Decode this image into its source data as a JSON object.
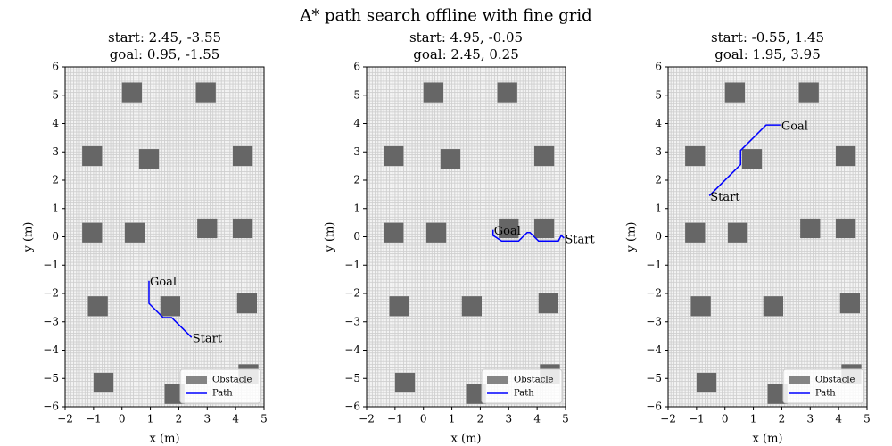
{
  "title": "A* path search offline with fine grid",
  "chart_data": [
    {
      "type": "line",
      "title": "start: 2.45, -3.55",
      "subtitle": "goal: 0.95, -1.55",
      "x_label": "x (m)",
      "y_label": "y (m)",
      "xlim": [
        -2,
        5
      ],
      "ylim": [
        -6,
        6
      ],
      "xticks": [
        {
          "value": -2,
          "label": "−2"
        },
        {
          "value": -1,
          "label": "−1"
        },
        0,
        1,
        2,
        3,
        4,
        5
      ],
      "yticks": [
        {
          "value": -6,
          "label": "−6"
        },
        {
          "value": -5,
          "label": "−5"
        },
        {
          "value": -4,
          "label": "−4"
        },
        {
          "value": -3,
          "label": "−3"
        },
        {
          "value": -2,
          "label": "−2"
        },
        {
          "value": -1,
          "label": "−1"
        },
        0,
        1,
        2,
        3,
        4,
        5,
        6
      ],
      "grid_resolution": 0.1,
      "legend": "lower right",
      "obstacles": {
        "name": "Obstacle",
        "color": "#666666",
        "size": 0.7,
        "x": [
          0.35,
          2.95,
          -1.05,
          0.95,
          4.25,
          -1.05,
          0.45,
          3.0,
          4.25,
          -0.85,
          1.7,
          4.4,
          -0.65,
          4.45,
          1.85
        ],
        "y": [
          5.1,
          5.1,
          2.85,
          2.75,
          2.85,
          0.15,
          0.15,
          0.3,
          0.3,
          -2.45,
          -2.45,
          -2.35,
          -5.15,
          -4.85,
          -5.55
        ]
      },
      "series": [
        {
          "name": "Path",
          "color": "#0000ff",
          "x": [
            2.45,
            1.75,
            1.45,
            0.95,
            0.95
          ],
          "values": [
            -3.55,
            -2.85,
            -2.85,
            -2.35,
            -1.55
          ]
        }
      ],
      "annotations": [
        {
          "text": "Start",
          "x": 2.45,
          "y": -3.55
        },
        {
          "text": "Goal",
          "x": 0.95,
          "y": -1.55
        }
      ]
    },
    {
      "type": "line",
      "title": "start: 4.95, -0.05",
      "subtitle": "goal: 2.45, 0.25",
      "x_label": "x (m)",
      "y_label": "y (m)",
      "xlim": [
        -2,
        5
      ],
      "ylim": [
        -6,
        6
      ],
      "xticks": [
        {
          "value": -2,
          "label": "−2"
        },
        {
          "value": -1,
          "label": "−1"
        },
        0,
        1,
        2,
        3,
        4,
        5
      ],
      "yticks": [
        {
          "value": -6,
          "label": "−6"
        },
        {
          "value": -5,
          "label": "−5"
        },
        {
          "value": -4,
          "label": "−4"
        },
        {
          "value": -3,
          "label": "−3"
        },
        {
          "value": -2,
          "label": "−2"
        },
        {
          "value": -1,
          "label": "−1"
        },
        0,
        1,
        2,
        3,
        4,
        5,
        6
      ],
      "grid_resolution": 0.1,
      "legend": "lower right",
      "obstacles": {
        "name": "Obstacle",
        "color": "#666666",
        "size": 0.7,
        "x": [
          0.35,
          2.95,
          -1.05,
          0.95,
          4.25,
          -1.05,
          0.45,
          3.0,
          4.25,
          -0.85,
          1.7,
          4.4,
          -0.65,
          4.45,
          1.85
        ],
        "y": [
          5.1,
          5.1,
          2.85,
          2.75,
          2.85,
          0.15,
          0.15,
          0.3,
          0.3,
          -2.45,
          -2.45,
          -2.35,
          -5.15,
          -4.85,
          -5.55
        ]
      },
      "series": [
        {
          "name": "Path",
          "color": "#0000ff",
          "x": [
            4.95,
            4.85,
            4.75,
            4.05,
            3.75,
            3.65,
            3.35,
            2.75,
            2.45,
            2.45
          ],
          "values": [
            -0.05,
            0.05,
            -0.15,
            -0.15,
            0.15,
            0.15,
            -0.15,
            -0.15,
            0.05,
            0.25
          ]
        }
      ],
      "annotations": [
        {
          "text": "Start",
          "x": 4.95,
          "y": -0.05
        },
        {
          "text": "Goal",
          "x": 2.45,
          "y": 0.25
        }
      ]
    },
    {
      "type": "line",
      "title": "start: -0.55, 1.45",
      "subtitle": "goal: 1.95, 3.95",
      "x_label": "x (m)",
      "y_label": "y (m)",
      "xlim": [
        -2,
        5
      ],
      "ylim": [
        -6,
        6
      ],
      "xticks": [
        {
          "value": -2,
          "label": "−2"
        },
        {
          "value": -1,
          "label": "−1"
        },
        0,
        1,
        2,
        3,
        4,
        5
      ],
      "yticks": [
        {
          "value": -6,
          "label": "−6"
        },
        {
          "value": -5,
          "label": "−5"
        },
        {
          "value": -4,
          "label": "−4"
        },
        {
          "value": -3,
          "label": "−3"
        },
        {
          "value": -2,
          "label": "−2"
        },
        {
          "value": -1,
          "label": "−1"
        },
        0,
        1,
        2,
        3,
        4,
        5,
        6
      ],
      "grid_resolution": 0.1,
      "legend": "lower right",
      "obstacles": {
        "name": "Obstacle",
        "color": "#666666",
        "size": 0.7,
        "x": [
          0.35,
          2.95,
          -1.05,
          0.95,
          4.25,
          -1.05,
          0.45,
          3.0,
          4.25,
          -0.85,
          1.7,
          4.4,
          -0.65,
          4.45,
          1.85
        ],
        "y": [
          5.1,
          5.1,
          2.85,
          2.75,
          2.85,
          0.15,
          0.15,
          0.3,
          0.3,
          -2.45,
          -2.45,
          -2.35,
          -5.15,
          -4.85,
          -5.55
        ]
      },
      "series": [
        {
          "name": "Path",
          "color": "#0000ff",
          "x": [
            -0.55,
            -0.45,
            0.55,
            0.55,
            1.45,
            1.95
          ],
          "values": [
            1.45,
            1.55,
            2.55,
            3.05,
            3.95,
            3.95
          ]
        }
      ],
      "annotations": [
        {
          "text": "Start",
          "x": -0.55,
          "y": 1.45
        },
        {
          "text": "Goal",
          "x": 1.95,
          "y": 3.95
        }
      ]
    }
  ]
}
